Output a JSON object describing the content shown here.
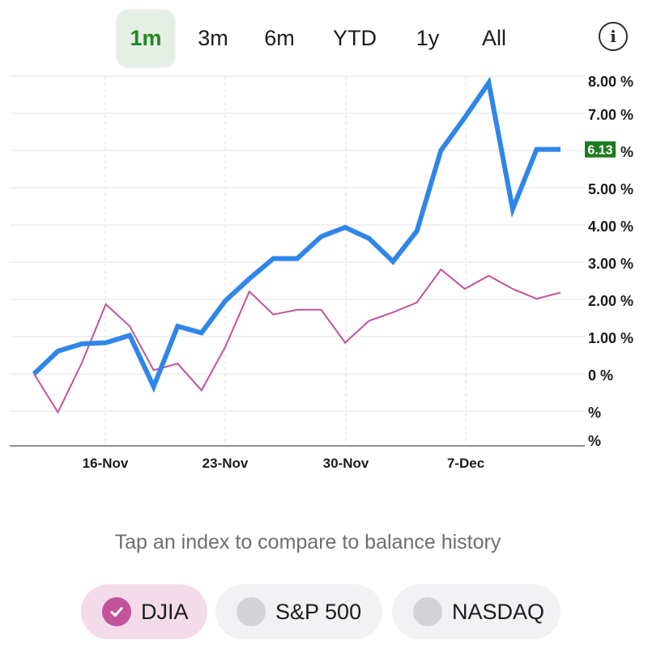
{
  "range_selector": {
    "options": [
      "1m",
      "3m",
      "6m",
      "YTD",
      "1y",
      "All"
    ],
    "selected": "1m"
  },
  "info_button": {
    "icon": "info-icon",
    "glyph": "i"
  },
  "chart_data": {
    "type": "line",
    "title": "",
    "xlabel": "",
    "ylabel": "",
    "x_ticks": [
      "16-Nov",
      "23-Nov",
      "30-Nov",
      "7-Dec"
    ],
    "y_ticks": [
      "8.00 %",
      "7.00 %",
      "6.00 %",
      "5.00 %",
      "4.00 %",
      "3.00 %",
      "2.00 %",
      "1.00 %",
      "0 %",
      "%",
      "%"
    ],
    "ylim": [
      -1.8,
      8.0
    ],
    "grid": true,
    "current_value_label": "6.13",
    "series": [
      {
        "values": [
          0.0,
          0.62,
          0.82,
          0.85,
          1.05,
          -0.35,
          1.3,
          1.12,
          2.0,
          2.6,
          3.15,
          3.15,
          3.75,
          4.0,
          3.7,
          3.07,
          3.9,
          6.1,
          7.0,
          7.95,
          4.5,
          6.13,
          6.13
        ],
        "color": "#2f86e8"
      },
      {
        "values": [
          0.0,
          -1.05,
          0.3,
          1.9,
          1.3,
          0.1,
          0.28,
          -0.45,
          0.75,
          2.25,
          1.62,
          1.75,
          1.75,
          0.85,
          1.45,
          1.68,
          1.95,
          2.85,
          2.32,
          2.68,
          2.32,
          2.05,
          2.22
        ],
        "color": "#c2539b"
      }
    ]
  },
  "hint_text": "Tap an index to compare to balance history",
  "index_chips": [
    {
      "label": "DJIA",
      "selected": true,
      "color": "#c2539b"
    },
    {
      "label": "S&P 500",
      "selected": false,
      "color": "#d4d4d8"
    },
    {
      "label": "NASDAQ",
      "selected": false,
      "color": "#d4d4d8"
    }
  ]
}
